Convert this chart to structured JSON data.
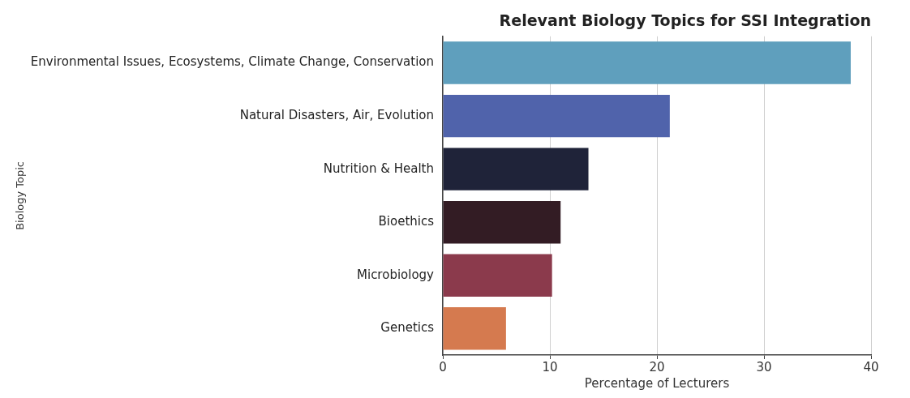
{
  "chart_data": {
    "type": "bar",
    "orientation": "horizontal",
    "title": "Relevant Biology Topics for SSI Integration",
    "xlabel": "Percentage of Lecturers",
    "ylabel": "Biology Topic",
    "categories": [
      "Environmental Issues, Ecosystems, Climate Change, Conservation",
      "Natural Disasters, Air, Evolution",
      "Nutrition & Health",
      "Bioethics",
      "Microbiology",
      "Genetics"
    ],
    "values": [
      38.1,
      21.2,
      13.6,
      11.0,
      10.2,
      5.9
    ],
    "colors": [
      "#5f9fbd",
      "#5063ab",
      "#1f2339",
      "#331c24",
      "#8b3a4c",
      "#d57a4f"
    ],
    "xlim": [
      0,
      40
    ],
    "xticks": [
      0,
      10,
      20,
      30,
      40
    ],
    "grid": "x",
    "legend": false
  }
}
